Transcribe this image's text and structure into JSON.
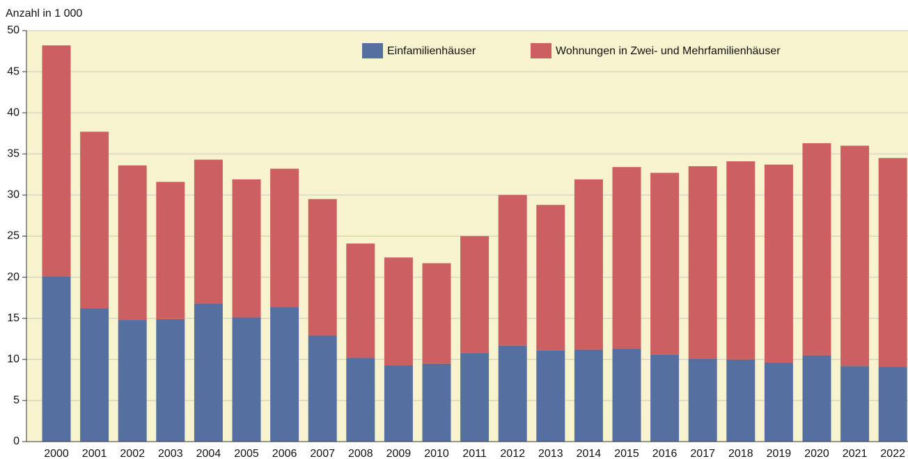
{
  "chart_data": {
    "type": "stacked_bar",
    "title": "Anzahl in 1 000",
    "categories": [
      "2000",
      "2001",
      "2002",
      "2003",
      "2004",
      "2005",
      "2006",
      "2007",
      "2008",
      "2009",
      "2010",
      "2011",
      "2012",
      "2013",
      "2014",
      "2015",
      "2016",
      "2017",
      "2018",
      "2019",
      "2020",
      "2021",
      "2022"
    ],
    "series": [
      {
        "name": "Einfamilienhäuser",
        "color": "#5570a0",
        "values": [
          20.1,
          16.2,
          14.8,
          14.9,
          16.8,
          15.1,
          16.4,
          12.9,
          10.2,
          9.3,
          9.5,
          10.8,
          11.7,
          11.1,
          11.2,
          11.3,
          10.6,
          10.1,
          10.0,
          9.6,
          10.5,
          9.2,
          9.1
        ]
      },
      {
        "name": "Wohnungen in Zwei- und Mehrfamilienhäuser",
        "color": "#cc5f62",
        "values": [
          28.1,
          21.5,
          18.8,
          16.7,
          17.5,
          16.8,
          16.8,
          16.6,
          13.9,
          13.1,
          12.2,
          14.2,
          18.3,
          17.7,
          20.7,
          22.1,
          22.1,
          23.4,
          24.1,
          24.1,
          25.8,
          26.8,
          25.4
        ]
      }
    ],
    "ylim": [
      0,
      50
    ],
    "yticks": [
      0,
      5,
      10,
      15,
      20,
      25,
      30,
      35,
      40,
      45,
      50
    ],
    "grid": true,
    "legend": "top"
  }
}
